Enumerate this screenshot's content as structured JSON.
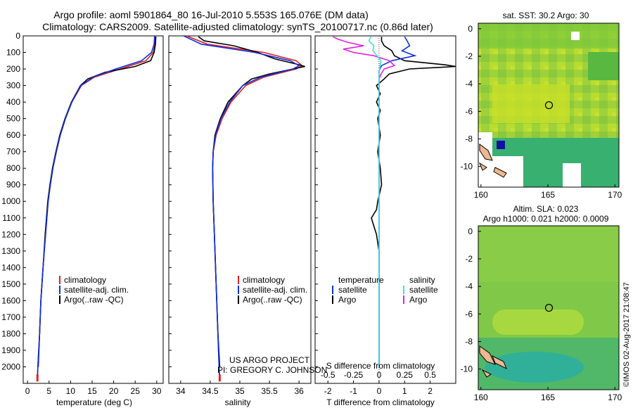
{
  "header": {
    "line1": "Argo profile: aoml 5901864_80 16-Jul-2010 5.553S 165.076E (DM data)",
    "line2": "Climatology: CARS2009. Satellite-adjusted climatology: synTS_20100717.nc (0.86d later)"
  },
  "colors": {
    "climatology": "#e02020",
    "satellite": "#1030e0",
    "argo": "#000000",
    "sat_salinity": "#40e0e0",
    "argo_salinity": "#e020e0"
  },
  "credit": {
    "line1": "US ARGO PROJECT",
    "line2": "PI: GREGORY C. JOHNSON"
  },
  "stamp": "©IMOS 02-Aug-2017 21:08:47",
  "chart_data": [
    {
      "id": "temperature",
      "type": "line",
      "xlabel": "temperature (deg C)",
      "xlim": [
        -1,
        31.5
      ],
      "ylim": [
        2100,
        0
      ],
      "xticks": [
        0,
        5,
        10,
        15,
        20,
        25,
        30
      ],
      "yticks": [
        0,
        100,
        200,
        300,
        400,
        500,
        600,
        700,
        800,
        900,
        1000,
        1100,
        1200,
        1300,
        1400,
        1500,
        1600,
        1700,
        1800,
        1900,
        2000
      ],
      "legend": [
        "climatology",
        "satellite-adj. clim.",
        "Argo(..raw -QC)"
      ],
      "series": [
        {
          "name": "climatology",
          "depth": [
            0,
            50,
            100,
            150,
            200,
            250,
            300,
            400,
            500,
            600,
            700,
            800,
            900,
            1000,
            1200,
            1400,
            1600,
            1800,
            2000,
            2080
          ],
          "values": [
            29.7,
            29.6,
            29.2,
            27.5,
            21.5,
            15.5,
            12.5,
            10.3,
            8.8,
            7.6,
            6.7,
            5.9,
            5.3,
            4.8,
            4.2,
            3.6,
            3.1,
            2.8,
            2.4,
            2.3
          ]
        },
        {
          "name": "satellite-adj. clim.",
          "depth": [
            0,
            50,
            100,
            150,
            200,
            250,
            300,
            400,
            500,
            600,
            700,
            800,
            900,
            1000,
            1200,
            1400,
            1600,
            1800,
            2000,
            2080
          ],
          "values": [
            29.5,
            29.4,
            28.8,
            26.5,
            20.5,
            15.2,
            12.4,
            10.3,
            8.8,
            7.6,
            6.7,
            5.9,
            5.3,
            4.8,
            4.2,
            3.6,
            3.1,
            2.8,
            2.4,
            2.3
          ]
        },
        {
          "name": "Argo(..raw -QC)",
          "depth": [
            5,
            50,
            100,
            150,
            185,
            220,
            260,
            300,
            400,
            500,
            600,
            700,
            800,
            900,
            1000,
            1200,
            1400,
            1600,
            1800,
            2000
          ],
          "values": [
            29.8,
            29.7,
            29.4,
            28.6,
            25.0,
            18.0,
            14.0,
            12.3,
            10.2,
            8.7,
            7.5,
            6.6,
            5.8,
            5.2,
            4.7,
            4.1,
            3.6,
            3.1,
            2.8,
            2.5
          ]
        }
      ]
    },
    {
      "id": "salinity",
      "type": "line",
      "xlabel": "salinity",
      "xlim": [
        33.8,
        36.2
      ],
      "ylim": [
        2100,
        0
      ],
      "xticks": [
        34,
        34.5,
        35,
        35.5,
        36
      ],
      "legend": [
        "climatology",
        "satellite-adj. clim.",
        "Argo(..raw -QC)"
      ],
      "series": [
        {
          "name": "climatology",
          "depth": [
            0,
            50,
            100,
            150,
            180,
            200,
            250,
            300,
            400,
            500,
            600,
            700,
            800,
            1000,
            1200,
            1500,
            2000,
            2080
          ],
          "values": [
            34.1,
            34.45,
            35.4,
            35.95,
            36.05,
            35.95,
            35.4,
            35.1,
            34.85,
            34.7,
            34.6,
            34.55,
            34.54,
            34.55,
            34.57,
            34.6,
            34.65,
            34.66
          ]
        },
        {
          "name": "satellite-adj. clim.",
          "depth": [
            0,
            50,
            100,
            150,
            180,
            200,
            250,
            300,
            400,
            500,
            600,
            700,
            800,
            1000,
            1200,
            1500,
            2000,
            2080
          ],
          "values": [
            34.05,
            34.35,
            35.25,
            35.85,
            36.0,
            35.9,
            35.35,
            35.05,
            34.83,
            34.68,
            34.59,
            34.55,
            34.54,
            34.55,
            34.57,
            34.6,
            34.65,
            34.66
          ]
        },
        {
          "name": "Argo(..raw -QC)",
          "depth": [
            5,
            30,
            60,
            100,
            140,
            170,
            185,
            200,
            230,
            260,
            300,
            400,
            500,
            600,
            700,
            800,
            1000,
            1200,
            1500,
            1800,
            2000
          ],
          "values": [
            34.3,
            34.4,
            34.9,
            35.3,
            35.6,
            35.95,
            36.1,
            35.9,
            35.5,
            35.2,
            35.05,
            34.8,
            34.67,
            34.58,
            34.55,
            34.54,
            34.55,
            34.57,
            34.6,
            34.63,
            34.66
          ]
        }
      ]
    },
    {
      "id": "difference",
      "type": "line",
      "xlabel_top": "S difference from climatology",
      "xlabel": "T difference from climatology",
      "xticks_T": [
        -2,
        -1,
        0,
        1,
        2
      ],
      "xticks_S": [
        -0.5,
        -0.25,
        0,
        0.25,
        0.5
      ],
      "xlim_T": [
        -2.5,
        3
      ],
      "ylim": [
        2100,
        0
      ],
      "legend_titles": [
        "temperature",
        "salinity"
      ],
      "legend": [
        "satellite",
        "Argo",
        "satellite",
        "Argo"
      ],
      "series": [
        {
          "name": "satellite T",
          "depth": [
            5,
            30,
            60,
            90,
            120,
            150,
            180,
            210,
            260,
            300,
            400,
            600,
            800,
            1000,
            1200,
            2000
          ],
          "values": [
            1.0,
            1.1,
            1.2,
            0.9,
            1.4,
            0.5,
            0.1,
            0.0,
            0.0,
            0.0,
            0.0,
            0.0,
            0.0,
            0.0,
            0.0,
            0.0
          ]
        },
        {
          "name": "Argo T",
          "depth": [
            5,
            30,
            60,
            90,
            120,
            150,
            175,
            185,
            200,
            230,
            260,
            300,
            350,
            400,
            450,
            500,
            600,
            700,
            800,
            900,
            1000,
            1050,
            1100,
            1150,
            1200,
            1300,
            1500,
            1700,
            2000
          ],
          "values": [
            0.1,
            0.1,
            0.2,
            0.5,
            0.6,
            1.0,
            2.6,
            3.0,
            1.2,
            0.4,
            0.2,
            -0.1,
            0.05,
            -0.1,
            0.05,
            -0.05,
            0.05,
            -0.05,
            0.05,
            0.1,
            -0.05,
            -0.1,
            -0.3,
            -0.2,
            -0.1,
            0.0,
            0.0,
            0.0,
            0.0
          ]
        },
        {
          "name": "satellite S",
          "depth": [
            5,
            30,
            60,
            90,
            120,
            150,
            180,
            220,
            260,
            300,
            400,
            600,
            1000,
            2000
          ],
          "values": [
            -0.08,
            -0.1,
            -0.05,
            -0.06,
            -0.02,
            0.02,
            0.01,
            0.0,
            0.0,
            0.0,
            0.0,
            0.0,
            0.0,
            0.0
          ]
        },
        {
          "name": "Argo S",
          "depth": [
            5,
            20,
            40,
            60,
            80,
            100,
            120,
            150,
            180,
            200,
            230,
            260,
            300,
            400,
            600,
            1000,
            2000
          ],
          "values": [
            -0.45,
            -0.4,
            -0.3,
            -0.15,
            -0.35,
            -0.25,
            -0.05,
            0.1,
            0.15,
            0.05,
            0.02,
            0.0,
            0.0,
            0.0,
            0.0,
            0.0,
            0.0
          ]
        }
      ]
    },
    {
      "id": "sst-map",
      "type": "heatmap",
      "title": "sat. SST: 30.2  Argo: 30",
      "xticks": [
        160,
        165,
        170
      ],
      "yticks": [
        0,
        -2,
        -4,
        -6,
        -8,
        -10
      ],
      "xlim": [
        159.8,
        170.3
      ],
      "ylim": [
        -11.5,
        0.4
      ],
      "profile_location": {
        "lon": 165.076,
        "lat": -5.553
      }
    },
    {
      "id": "sla-map",
      "type": "heatmap",
      "title_line1": "Altim. SLA: 0.023",
      "title_line2": "Argo h1000: 0.021 h2000: 0.0009",
      "xticks": [
        160,
        165,
        170
      ],
      "yticks": [
        0,
        -2,
        -4,
        -6,
        -8,
        -10
      ],
      "xlim": [
        159.8,
        170.3
      ],
      "ylim": [
        -11.5,
        0.4
      ],
      "profile_location": {
        "lon": 165.076,
        "lat": -5.553
      }
    }
  ]
}
